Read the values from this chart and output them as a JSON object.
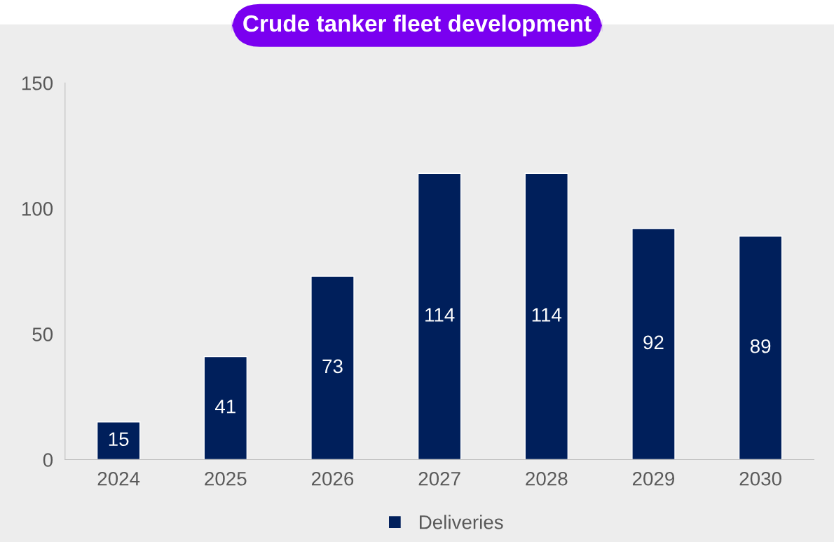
{
  "chart_data": {
    "type": "bar",
    "title": "Crude tanker fleet development",
    "categories": [
      "2024",
      "2025",
      "2026",
      "2027",
      "2028",
      "2029",
      "2030"
    ],
    "series": [
      {
        "name": "Deliveries",
        "color": "#001f5b",
        "values": [
          15,
          41,
          73,
          114,
          114,
          92,
          89
        ]
      }
    ],
    "ylim": [
      0,
      150
    ],
    "yticks": [
      0,
      50,
      100,
      150
    ],
    "data_labels": true,
    "legend": "bottom",
    "grid": false
  }
}
